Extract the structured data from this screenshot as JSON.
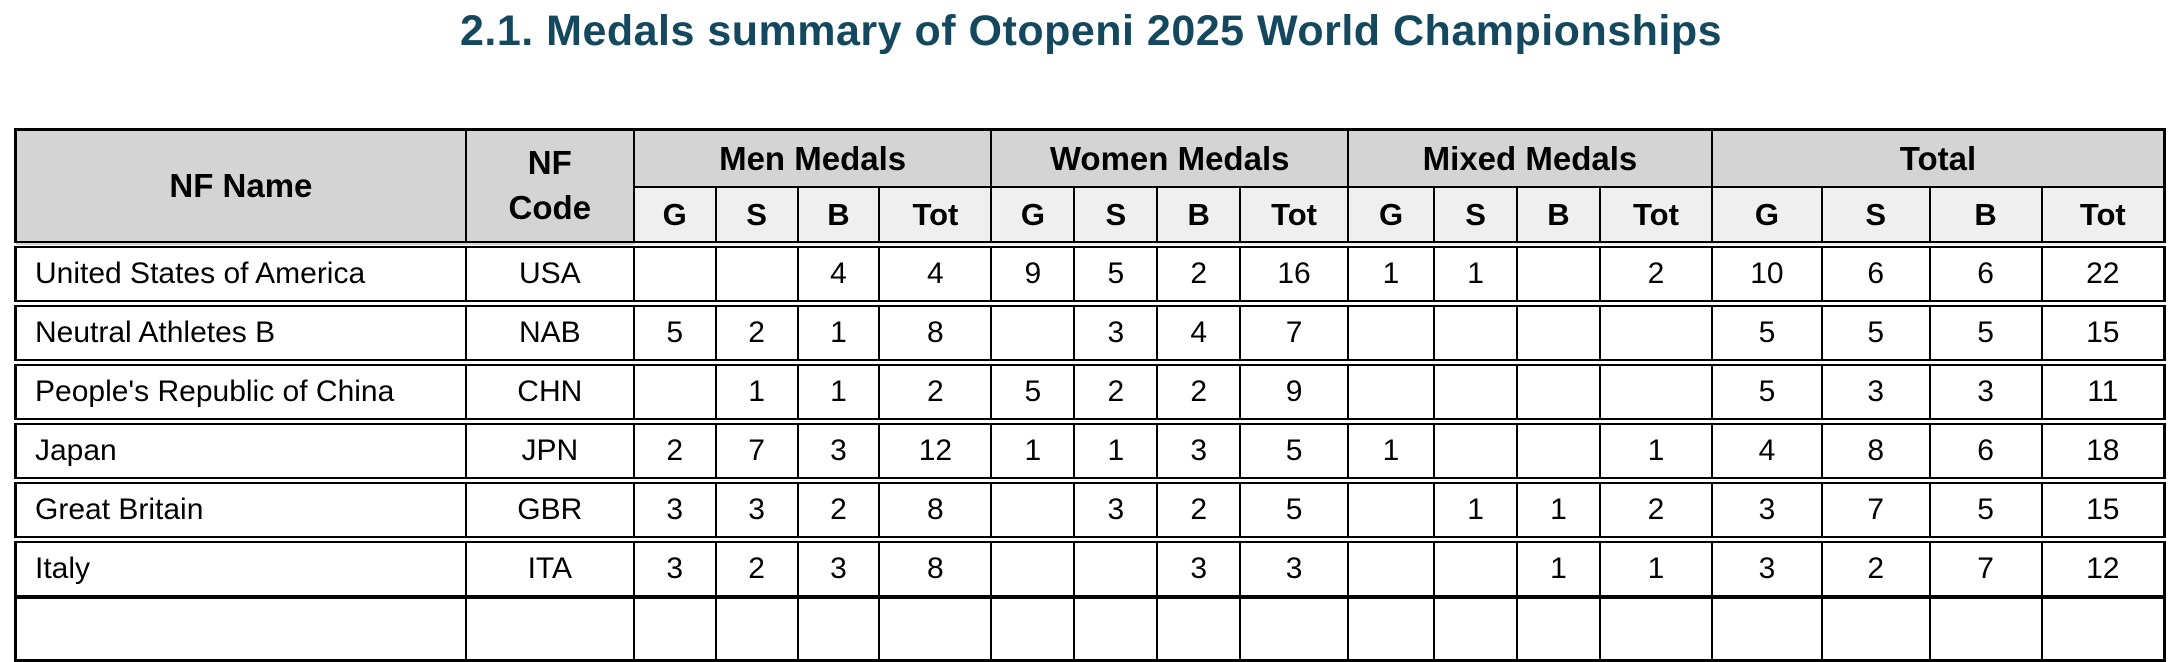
{
  "title": "2.1. Medals summary of Otopeni 2025 World Championships",
  "colors": {
    "title_text": "#14485E",
    "group_header_bg": "#D4D4D4",
    "subheader_bg": "#EFEFEF",
    "border": "#000000",
    "row_bg": "#FFFFFF"
  },
  "table": {
    "columns": {
      "nf_name": "NF Name",
      "nf_code": "NF Code",
      "groups": [
        {
          "label": "Men Medals",
          "sub": [
            "G",
            "S",
            "B",
            "Tot"
          ]
        },
        {
          "label": "Women Medals",
          "sub": [
            "G",
            "S",
            "B",
            "Tot"
          ]
        },
        {
          "label": "Mixed Medals",
          "sub": [
            "G",
            "S",
            "B",
            "Tot"
          ]
        },
        {
          "label": "Total",
          "sub": [
            "G",
            "S",
            "B",
            "Tot"
          ]
        }
      ]
    },
    "rows": [
      {
        "nf_name": "United States of America",
        "nf_code": "USA",
        "men": [
          "",
          "",
          "4",
          "4"
        ],
        "women": [
          "9",
          "5",
          "2",
          "16"
        ],
        "mixed": [
          "1",
          "1",
          "",
          "2"
        ],
        "total": [
          "10",
          "6",
          "6",
          "22"
        ]
      },
      {
        "nf_name": "Neutral Athletes B",
        "nf_code": "NAB",
        "men": [
          "5",
          "2",
          "1",
          "8"
        ],
        "women": [
          "",
          "3",
          "4",
          "7"
        ],
        "mixed": [
          "",
          "",
          "",
          ""
        ],
        "total": [
          "5",
          "5",
          "5",
          "15"
        ]
      },
      {
        "nf_name": "People's Republic of China",
        "nf_code": "CHN",
        "men": [
          "",
          "1",
          "1",
          "2"
        ],
        "women": [
          "5",
          "2",
          "2",
          "9"
        ],
        "mixed": [
          "",
          "",
          "",
          ""
        ],
        "total": [
          "5",
          "3",
          "3",
          "11"
        ]
      },
      {
        "nf_name": "Japan",
        "nf_code": "JPN",
        "men": [
          "2",
          "7",
          "3",
          "12"
        ],
        "women": [
          "1",
          "1",
          "3",
          "5"
        ],
        "mixed": [
          "1",
          "",
          "",
          "1"
        ],
        "total": [
          "4",
          "8",
          "6",
          "18"
        ]
      },
      {
        "nf_name": "Great Britain",
        "nf_code": "GBR",
        "men": [
          "3",
          "3",
          "2",
          "8"
        ],
        "women": [
          "",
          "3",
          "2",
          "5"
        ],
        "mixed": [
          "",
          "1",
          "1",
          "2"
        ],
        "total": [
          "3",
          "7",
          "5",
          "15"
        ]
      },
      {
        "nf_name": "Italy",
        "nf_code": "ITA",
        "men": [
          "3",
          "2",
          "3",
          "8"
        ],
        "women": [
          "",
          "",
          "3",
          "3"
        ],
        "mixed": [
          "",
          "",
          "1",
          "1"
        ],
        "total": [
          "3",
          "2",
          "7",
          "12"
        ]
      }
    ]
  }
}
